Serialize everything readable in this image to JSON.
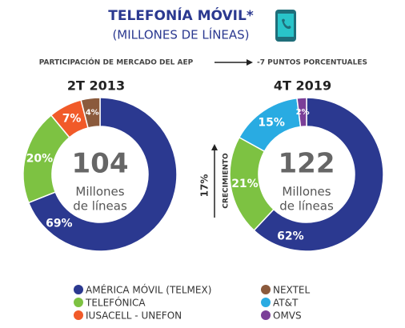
{
  "header": {
    "title": "TELEFONÍA MÓVIL*",
    "subtitle": "(MILLONES DE LÍNEAS)",
    "left_note": "PARTICIPACIÓN DE MERCADO DEL AEP",
    "right_note": "-7 PUNTOS PORCENTUALES",
    "growth_value": "17%",
    "growth_label": "CRECIMIENTO"
  },
  "chart_data": [
    {
      "type": "pie",
      "title": "2T 2013",
      "center_value": 104,
      "center_label": [
        "Millones",
        "de líneas"
      ],
      "values": [
        69,
        20,
        7,
        4
      ],
      "value_labels": [
        "69%",
        "20%",
        "7%",
        "4%"
      ],
      "colors": [
        "#2b3990",
        "#7dc242",
        "#f15a29",
        "#8b5a3c"
      ]
    },
    {
      "type": "pie",
      "title": "4T 2019",
      "center_value": 122,
      "center_label": [
        "Millones",
        "de líneas"
      ],
      "values": [
        62,
        21,
        15,
        2
      ],
      "value_labels": [
        "62%",
        "21%",
        "15%",
        "2%"
      ],
      "colors": [
        "#2b3990",
        "#7dc242",
        "#29abe2",
        "#7b3f98"
      ]
    }
  ],
  "legend": [
    {
      "name": "AMÉRICA MÓVIL (TELMEX)",
      "color": "#2b3990"
    },
    {
      "name": "NEXTEL",
      "color": "#8b5a3c"
    },
    {
      "name": "TELEFÓNICA",
      "color": "#7dc242"
    },
    {
      "name": "AT&T",
      "color": "#29abe2"
    },
    {
      "name": "IUSACELL - UNEFON",
      "color": "#f15a29"
    },
    {
      "name": "OMVS",
      "color": "#7b3f98"
    }
  ]
}
